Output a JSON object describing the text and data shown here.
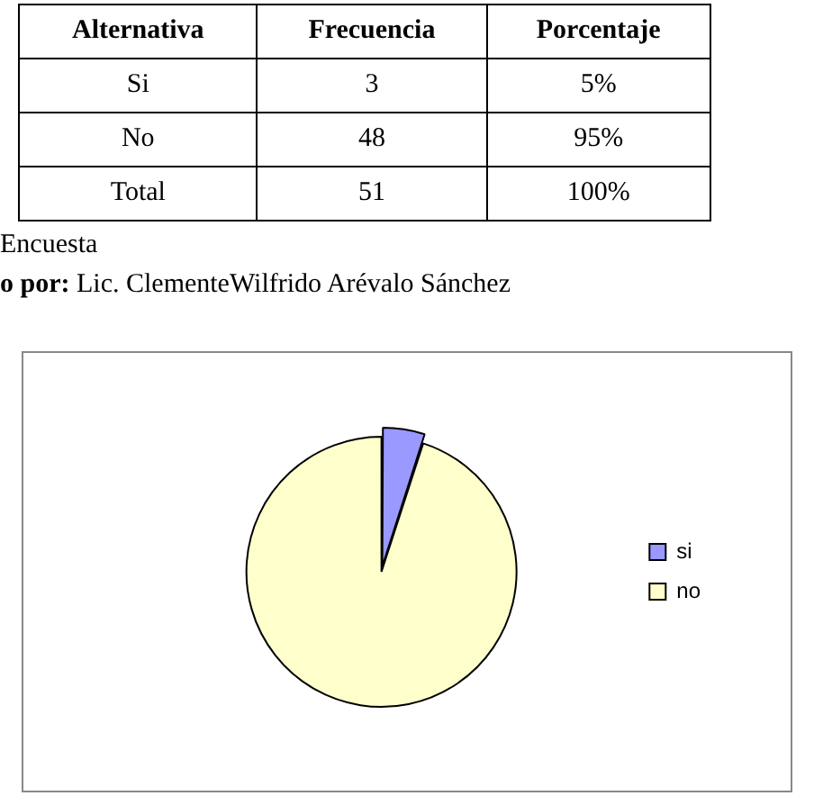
{
  "chart_data": {
    "type": "pie",
    "categories": [
      "si",
      "no"
    ],
    "values": [
      5,
      95
    ],
    "colors": [
      "#9999ff",
      "#ffffcc"
    ],
    "legend": "right",
    "annotations": [
      "Alternativa",
      "Frecuencia",
      "Porcentaje",
      "Si",
      "3",
      "5%",
      "No",
      "48",
      "95%",
      "Total",
      "51",
      "100%",
      "Encuesta",
      "o por: Lic. ClementeWilfrido Arévalo Sánchez"
    ]
  }
}
